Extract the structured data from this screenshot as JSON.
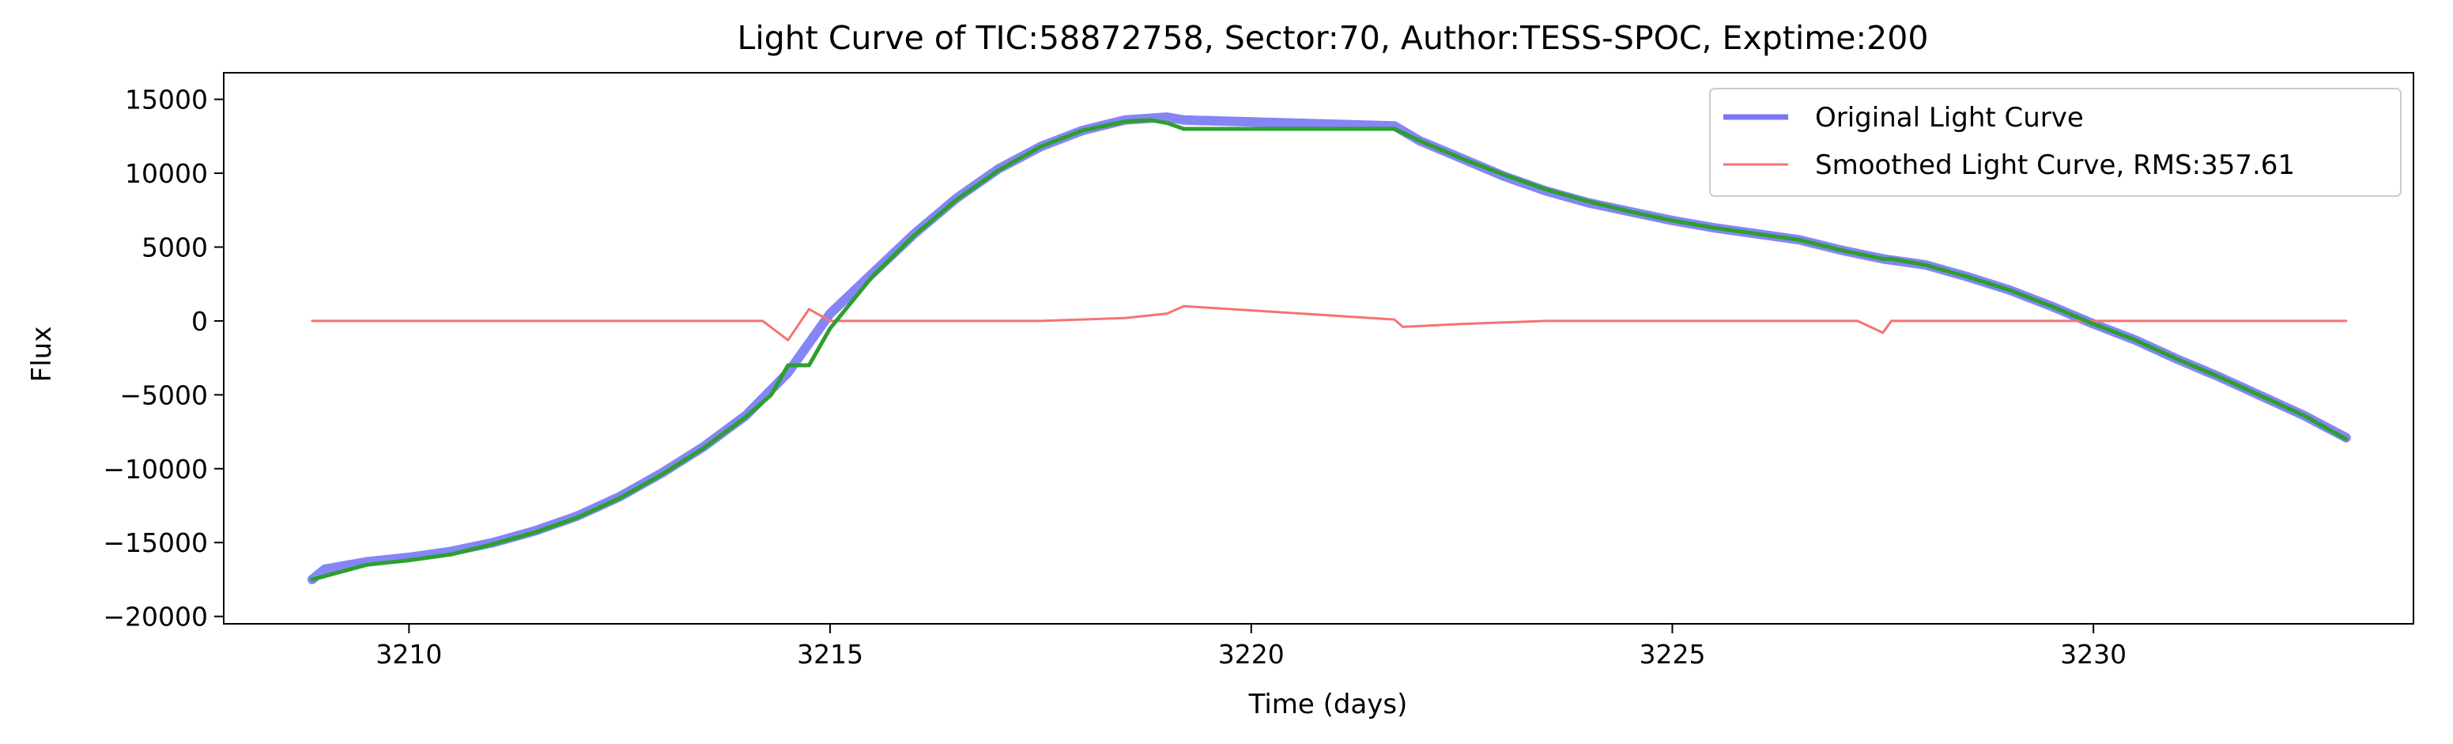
{
  "chart_data": {
    "type": "line",
    "title": "Light Curve of TIC:58872758, Sector:70, Author:TESS-SPOC, Exptime:200",
    "xlabel": "Time (days)",
    "ylabel": "Flux",
    "xlim": [
      3207.8,
      3233.8
    ],
    "ylim": [
      -20500,
      16800
    ],
    "xticks": [
      3210,
      3215,
      3220,
      3225,
      3230
    ],
    "yticks": [
      -20000,
      -15000,
      -10000,
      -5000,
      0,
      5000,
      10000,
      15000
    ],
    "grid": false,
    "legend_position": "top-right",
    "series": [
      {
        "name": "Original Light Curve",
        "color": "#7878f5",
        "x": [
          3208.85,
          3209.0,
          3209.5,
          3210.0,
          3210.5,
          3211.0,
          3211.5,
          3212.0,
          3212.5,
          3213.0,
          3213.5,
          3214.0,
          3214.5,
          3215.0,
          3215.5,
          3216.0,
          3216.5,
          3217.0,
          3217.5,
          3218.0,
          3218.5,
          3219.0,
          3219.2,
          3221.7,
          3222.0,
          3222.5,
          3223.0,
          3223.5,
          3224.0,
          3224.5,
          3225.0,
          3225.5,
          3226.0,
          3226.5,
          3227.0,
          3227.5,
          3228.0,
          3228.5,
          3229.0,
          3229.5,
          3230.0,
          3230.5,
          3231.0,
          3231.5,
          3232.0,
          3232.5,
          3233.0
        ],
        "y": [
          -17500,
          -16800,
          -16300,
          -16000,
          -15600,
          -15000,
          -14200,
          -13200,
          -11900,
          -10300,
          -8500,
          -6400,
          -3500,
          500,
          3200,
          5900,
          8300,
          10300,
          11800,
          12900,
          13600,
          13800,
          13600,
          13200,
          12200,
          11000,
          9800,
          8800,
          8000,
          7400,
          6800,
          6300,
          5900,
          5500,
          4800,
          4200,
          3800,
          3000,
          2100,
          1000,
          -200,
          -1300,
          -2600,
          -3800,
          -5100,
          -6400,
          -7900
        ]
      },
      {
        "name": "Smoothed Light Curve, RMS:357.61",
        "color": "#f77272",
        "x": [
          3208.85,
          3209.5,
          3210.5,
          3211.5,
          3212.5,
          3213.5,
          3214.2,
          3214.5,
          3214.75,
          3215.0,
          3215.5,
          3216.5,
          3217.5,
          3218.5,
          3219.0,
          3219.2,
          3221.7,
          3221.8,
          3222.5,
          3223.5,
          3224.5,
          3225.5,
          3226.5,
          3227.2,
          3227.5,
          3227.6,
          3228.5,
          3229.5,
          3230.5,
          3231.5,
          3232.5,
          3233.0
        ],
        "y": [
          0,
          0,
          0,
          0,
          0,
          0,
          0,
          -1300,
          800,
          0,
          0,
          0,
          0,
          200,
          500,
          1000,
          100,
          -400,
          -200,
          0,
          0,
          0,
          0,
          0,
          -800,
          0,
          0,
          0,
          0,
          0,
          0,
          0
        ]
      },
      {
        "color": "#2ca02c",
        "x": [
          3208.85,
          3209.5,
          3210.0,
          3210.5,
          3211.0,
          3211.5,
          3212.0,
          3212.5,
          3213.0,
          3213.5,
          3214.0,
          3214.3,
          3214.5,
          3214.75,
          3215.0,
          3215.5,
          3216.0,
          3216.5,
          3217.0,
          3217.5,
          3218.0,
          3218.5,
          3218.8,
          3219.0,
          3219.2,
          3221.7,
          3222.0,
          3222.5,
          3223.0,
          3223.5,
          3224.0,
          3224.5,
          3225.0,
          3225.5,
          3226.0,
          3226.5,
          3227.0,
          3227.5,
          3227.6,
          3228.0,
          3228.5,
          3229.0,
          3229.5,
          3230.0,
          3230.5,
          3231.0,
          3231.5,
          3232.0,
          3232.5,
          3233.0
        ],
        "y": [
          -17500,
          -16500,
          -16200,
          -15800,
          -15100,
          -14300,
          -13300,
          -12000,
          -10400,
          -8600,
          -6500,
          -5000,
          -3000,
          -3000,
          -500,
          3000,
          5800,
          8200,
          10200,
          11800,
          12900,
          13500,
          13600,
          13400,
          13000,
          13000,
          12200,
          11000,
          9900,
          8900,
          8100,
          7400,
          6800,
          6300,
          5900,
          5500,
          4800,
          4200,
          4200,
          3800,
          3000,
          2100,
          1000,
          -200,
          -1300,
          -2600,
          -3800,
          -5100,
          -6400,
          -8000
        ]
      }
    ]
  }
}
